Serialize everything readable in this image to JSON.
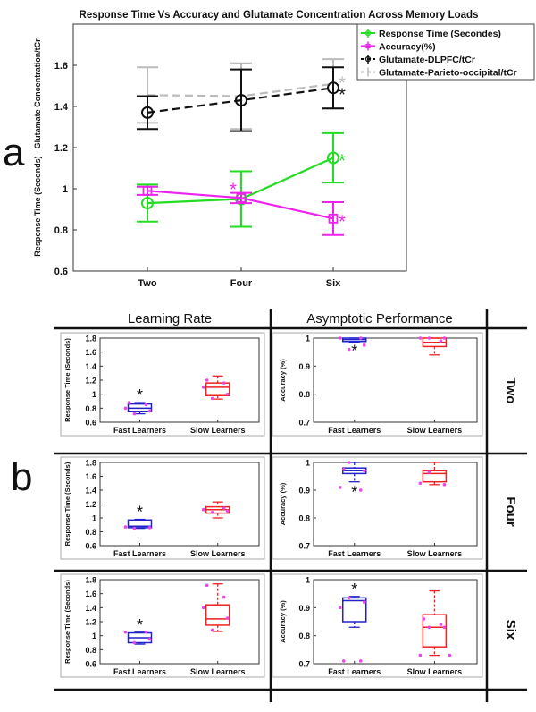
{
  "panel_labels": {
    "a": "a",
    "b": "b"
  },
  "colors": {
    "green": "#22dd22",
    "magenta": "#ee22ee",
    "black": "#111111",
    "gray": "#bbbbbb",
    "blue": "#2222cc",
    "red": "#ee2222",
    "dot": "#ee44ee"
  },
  "chart_data": [
    {
      "id": "a",
      "type": "line",
      "title": "Response Time Vs Accuracy and Glutamate Concentration Across Memory Loads",
      "xlabel": "",
      "ylabel": "Response Time (Seconds) - Glutamate Concentration/tCr",
      "categories": [
        "Two",
        "Four",
        "Six"
      ],
      "ylim": [
        0.6,
        1.8
      ],
      "yticks": [
        "0.6",
        "0.8",
        "1",
        "1.2",
        "1.4",
        "1.6"
      ],
      "legend_position": "top-right",
      "series": [
        {
          "name": "Response Time (Secondes)",
          "color": "green",
          "marker": "circle",
          "dash": "solid",
          "values": [
            0.93,
            0.95,
            1.15
          ],
          "err": [
            0.09,
            0.135,
            0.12
          ],
          "stars": [
            "",
            "",
            "*"
          ]
        },
        {
          "name": "Accuracy(%)",
          "color": "magenta",
          "marker": "square",
          "dash": "solid",
          "values": [
            0.99,
            0.955,
            0.855
          ],
          "err": [
            0.02,
            0.025,
            0.08
          ],
          "stars": [
            "",
            "*",
            "*"
          ]
        },
        {
          "name": "Glutamate-DLPFC/tCr",
          "color": "black",
          "marker": "circle",
          "dash": "dashed",
          "values": [
            1.37,
            1.43,
            1.49
          ],
          "err": [
            0.08,
            0.15,
            0.1
          ],
          "stars": [
            "",
            "",
            "*"
          ]
        },
        {
          "name": "Glutamate-Parieto-occipital/tCr",
          "color": "gray",
          "marker": "none",
          "dash": "dashed",
          "values": [
            1.455,
            1.45,
            1.51
          ],
          "err": [
            0.135,
            0.16,
            0.12
          ],
          "stars": [
            "",
            "",
            "*"
          ]
        }
      ]
    },
    {
      "id": "b",
      "type": "box",
      "column_titles": [
        "Learning Rate",
        "Asymptotic Performance"
      ],
      "row_labels": [
        "Two",
        "Four",
        "Six"
      ],
      "categories": [
        "Fast Learners",
        "Slow Learners"
      ],
      "rt_axis": {
        "ylabel": "Response Time (Seconds)",
        "ylim": [
          0.6,
          1.8
        ],
        "yticks": [
          "0.6",
          "0.8",
          "1",
          "1.2",
          "1.4",
          "1.6",
          "1.8"
        ]
      },
      "acc_axis": {
        "ylabel": "Accuracy (%)",
        "ylim": [
          0.7,
          1.0
        ],
        "yticks": [
          "0.7",
          "0.8",
          "0.9",
          "1"
        ]
      },
      "panels": [
        {
          "row": 0,
          "kind": "rt",
          "star": "Fast Learners",
          "boxes": [
            {
              "group": "Fast Learners",
              "color": "blue",
              "min": 0.72,
              "q1": 0.75,
              "median": 0.8,
              "q3": 0.86,
              "max": 0.88,
              "points": [
                0.72,
                0.76,
                0.8,
                0.85,
                0.88
              ]
            },
            {
              "group": "Slow Learners",
              "color": "red",
              "min": 0.93,
              "q1": 0.98,
              "median": 1.1,
              "q3": 1.16,
              "max": 1.26,
              "points": [
                0.94,
                1.0,
                1.1,
                1.16,
                1.2
              ]
            }
          ]
        },
        {
          "row": 0,
          "kind": "acc",
          "star": "Fast Learners",
          "boxes": [
            {
              "group": "Fast Learners",
              "color": "blue",
              "min": 0.985,
              "q1": 0.988,
              "median": 0.995,
              "q3": 1.0,
              "max": 1.0,
              "points": [
                0.96,
                0.975,
                1.0,
                1.0
              ]
            },
            {
              "group": "Slow Learners",
              "color": "red",
              "min": 0.94,
              "q1": 0.97,
              "median": 0.985,
              "q3": 1.0,
              "max": 1.0,
              "points": [
                1.0,
                1.0,
                1.0,
                0.99
              ]
            }
          ]
        },
        {
          "row": 1,
          "kind": "rt",
          "star": "Fast Learners",
          "boxes": [
            {
              "group": "Fast Learners",
              "color": "blue",
              "min": 0.85,
              "q1": 0.86,
              "median": 0.88,
              "q3": 0.97,
              "max": 0.98,
              "points": [
                0.85,
                0.86,
                0.87
              ]
            },
            {
              "group": "Slow Learners",
              "color": "red",
              "min": 1.0,
              "q1": 1.07,
              "median": 1.12,
              "q3": 1.16,
              "max": 1.23,
              "points": [
                1.08,
                1.1,
                1.12,
                1.14
              ]
            }
          ]
        },
        {
          "row": 1,
          "kind": "acc",
          "star": "Fast Learners",
          "boxes": [
            {
              "group": "Fast Learners",
              "color": "blue",
              "min": 0.93,
              "q1": 0.96,
              "median": 0.97,
              "q3": 0.98,
              "max": 1.0,
              "points": [
                1.0,
                0.97,
                0.91,
                0.9,
                0.975
              ]
            },
            {
              "group": "Slow Learners",
              "color": "red",
              "min": 0.92,
              "q1": 0.93,
              "median": 0.96,
              "q3": 0.97,
              "max": 1.0,
              "points": [
                0.965,
                0.92,
                0.925
              ]
            }
          ]
        },
        {
          "row": 2,
          "kind": "rt",
          "star": "Fast Learners",
          "boxes": [
            {
              "group": "Fast Learners",
              "color": "blue",
              "min": 0.88,
              "q1": 0.9,
              "median": 0.97,
              "q3": 1.04,
              "max": 1.05,
              "points": [
                0.9,
                0.95,
                1.05,
                1.05
              ]
            },
            {
              "group": "Slow Learners",
              "color": "red",
              "min": 1.06,
              "q1": 1.15,
              "median": 1.24,
              "q3": 1.44,
              "max": 1.74,
              "points": [
                1.08,
                1.25,
                1.4,
                1.55,
                1.72
              ]
            }
          ]
        },
        {
          "row": 2,
          "kind": "acc",
          "star": "Fast Learners",
          "boxes": [
            {
              "group": "Fast Learners",
              "color": "blue",
              "min": 0.83,
              "q1": 0.85,
              "median": 0.925,
              "q3": 0.935,
              "max": 0.94,
              "points": [
                0.935,
                0.92,
                0.9,
                0.71,
                0.71
              ]
            },
            {
              "group": "Slow Learners",
              "color": "red",
              "min": 0.73,
              "q1": 0.76,
              "median": 0.83,
              "q3": 0.875,
              "max": 0.96,
              "points": [
                0.83,
                0.83,
                0.73,
                0.84,
                0.86,
                0.73
              ]
            }
          ]
        }
      ]
    }
  ]
}
